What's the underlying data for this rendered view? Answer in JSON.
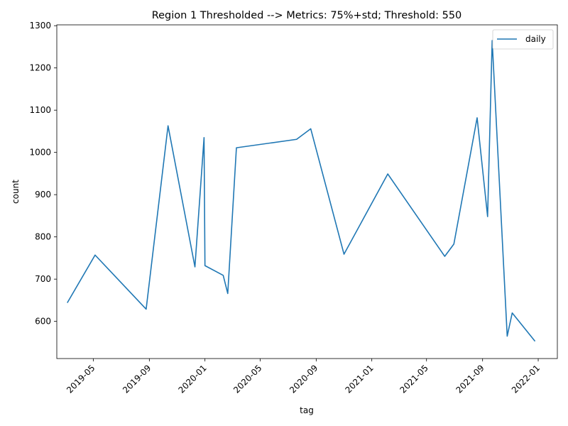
{
  "chart_data": {
    "type": "line",
    "title": "Region 1 Thresholded --> Metrics: 75%+std; Threshold: 550",
    "xlabel": "tag",
    "ylabel": "count",
    "x_tick_labels": [
      "2019-05",
      "2019-09",
      "2020-01",
      "2020-05",
      "2020-09",
      "2021-01",
      "2021-05",
      "2021-09",
      "2022-01"
    ],
    "y_tick_labels": [
      "600",
      "700",
      "800",
      "900",
      "1000",
      "1100",
      "1200",
      "1300"
    ],
    "ylim": [
      512,
      1302
    ],
    "xlim": [
      "2019-02-10",
      "2022-02-12"
    ],
    "legend_position": "upper right",
    "grid": false,
    "color": "#1f77b4",
    "series": [
      {
        "name": "daily",
        "points": [
          {
            "x": "2019-03-05",
            "y": 644
          },
          {
            "x": "2019-05-05",
            "y": 757
          },
          {
            "x": "2019-08-25",
            "y": 629
          },
          {
            "x": "2019-10-12",
            "y": 1063
          },
          {
            "x": "2019-12-10",
            "y": 729
          },
          {
            "x": "2019-12-30",
            "y": 1035
          },
          {
            "x": "2020-01-01",
            "y": 732
          },
          {
            "x": "2020-02-10",
            "y": 709
          },
          {
            "x": "2020-02-20",
            "y": 666
          },
          {
            "x": "2020-03-10",
            "y": 1011
          },
          {
            "x": "2020-07-20",
            "y": 1031
          },
          {
            "x": "2020-08-20",
            "y": 1056
          },
          {
            "x": "2020-11-01",
            "y": 759
          },
          {
            "x": "2021-02-05",
            "y": 949
          },
          {
            "x": "2021-06-10",
            "y": 754
          },
          {
            "x": "2021-06-30",
            "y": 783
          },
          {
            "x": "2021-08-20",
            "y": 1082
          },
          {
            "x": "2021-09-12",
            "y": 848
          },
          {
            "x": "2021-09-22",
            "y": 1265
          },
          {
            "x": "2021-10-25",
            "y": 565
          },
          {
            "x": "2021-11-05",
            "y": 620
          },
          {
            "x": "2021-12-25",
            "y": 553
          }
        ]
      }
    ]
  }
}
